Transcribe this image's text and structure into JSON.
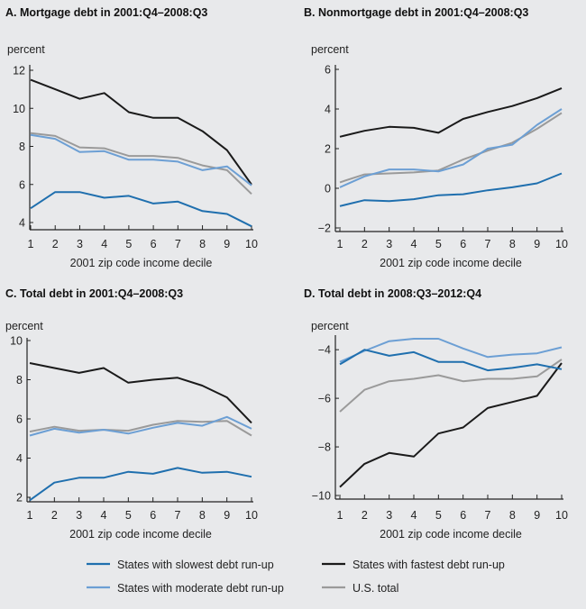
{
  "chart_data": [
    {
      "type": "line",
      "title": "A. Mortgage debt in 2001:Q4–2008:Q3",
      "ylabel": "percent",
      "xlabel": "2001 zip code income decile",
      "x": [
        1,
        2,
        3,
        4,
        5,
        6,
        7,
        8,
        9,
        10
      ],
      "ylim": [
        4,
        12
      ],
      "yticks": [
        4,
        6,
        8,
        10,
        12
      ],
      "series": [
        {
          "name": "States with fastest debt run-up",
          "color": "#1a1a1a",
          "values": [
            11.5,
            11.0,
            10.5,
            10.8,
            9.8,
            9.5,
            9.5,
            8.8,
            7.8,
            6.0
          ]
        },
        {
          "name": "U.S. total",
          "color": "#9a9a9a",
          "values": [
            8.7,
            8.55,
            7.95,
            7.9,
            7.5,
            7.5,
            7.4,
            7.0,
            6.75,
            5.5
          ]
        },
        {
          "name": "States with moderate debt run-up",
          "color": "#6c9fd4",
          "values": [
            8.6,
            8.4,
            7.7,
            7.75,
            7.3,
            7.3,
            7.2,
            6.75,
            6.95,
            5.95
          ]
        },
        {
          "name": "States with slowest debt run-up",
          "color": "#1f6fae",
          "values": [
            4.75,
            5.6,
            5.6,
            5.3,
            5.4,
            5.0,
            5.1,
            4.6,
            4.45,
            3.8
          ]
        }
      ]
    },
    {
      "type": "line",
      "title": "B. Nonmortgage debt in 2001:Q4–2008:Q3",
      "ylabel": "percent",
      "xlabel": "2001 zip code income decile",
      "x": [
        1,
        2,
        3,
        4,
        5,
        6,
        7,
        8,
        9,
        10
      ],
      "ylim": [
        -2,
        6
      ],
      "yticks": [
        -2,
        0,
        2,
        4,
        6
      ],
      "series": [
        {
          "name": "States with fastest debt run-up",
          "color": "#1a1a1a",
          "values": [
            2.6,
            2.9,
            3.1,
            3.05,
            2.8,
            3.5,
            3.85,
            4.15,
            4.55,
            5.05
          ]
        },
        {
          "name": "U.S. total",
          "color": "#9a9a9a",
          "values": [
            0.3,
            0.7,
            0.75,
            0.8,
            0.9,
            1.45,
            1.9,
            2.3,
            3.0,
            3.8
          ]
        },
        {
          "name": "States with moderate debt run-up",
          "color": "#6c9fd4",
          "values": [
            0.05,
            0.6,
            0.95,
            0.95,
            0.85,
            1.2,
            2.0,
            2.2,
            3.2,
            4.0
          ]
        },
        {
          "name": "States with slowest debt run-up",
          "color": "#1f6fae",
          "values": [
            -0.9,
            -0.6,
            -0.65,
            -0.55,
            -0.35,
            -0.3,
            -0.1,
            0.05,
            0.25,
            0.75
          ]
        }
      ]
    },
    {
      "type": "line",
      "title": "C. Total debt in 2001:Q4–2008:Q3",
      "ylabel": "percent",
      "xlabel": "2001 zip code income decile",
      "x": [
        1,
        2,
        3,
        4,
        5,
        6,
        7,
        8,
        9,
        10
      ],
      "ylim": [
        2,
        10
      ],
      "yticks": [
        2,
        4,
        6,
        8,
        10
      ],
      "series": [
        {
          "name": "States with fastest debt run-up",
          "color": "#1a1a1a",
          "values": [
            8.85,
            8.6,
            8.35,
            8.6,
            7.85,
            8.0,
            8.1,
            7.7,
            7.1,
            5.8
          ]
        },
        {
          "name": "U.S. total",
          "color": "#9a9a9a",
          "values": [
            5.35,
            5.6,
            5.4,
            5.45,
            5.4,
            5.7,
            5.9,
            5.85,
            5.9,
            5.15
          ]
        },
        {
          "name": "States with moderate debt run-up",
          "color": "#6c9fd4",
          "values": [
            5.15,
            5.5,
            5.3,
            5.45,
            5.25,
            5.55,
            5.8,
            5.65,
            6.1,
            5.5
          ]
        },
        {
          "name": "States with slowest debt run-up",
          "color": "#1f6fae",
          "values": [
            1.85,
            2.75,
            3.0,
            3.0,
            3.3,
            3.2,
            3.5,
            3.25,
            3.3,
            3.05
          ]
        }
      ]
    },
    {
      "type": "line",
      "title": "D. Total debt in 2008:Q3–2012:Q4",
      "ylabel": "percent",
      "xlabel": "2001 zip code income decile",
      "x": [
        1,
        2,
        3,
        4,
        5,
        6,
        7,
        8,
        9,
        10
      ],
      "ylim": [
        -10,
        -3.4
      ],
      "yticks": [
        -10,
        -8,
        -6,
        -4
      ],
      "series": [
        {
          "name": "States with fastest debt run-up",
          "color": "#1a1a1a",
          "values": [
            -9.65,
            -8.7,
            -8.25,
            -8.4,
            -7.45,
            -7.2,
            -6.4,
            -6.15,
            -5.9,
            -4.55
          ]
        },
        {
          "name": "U.S. total",
          "color": "#9a9a9a",
          "values": [
            -6.55,
            -5.65,
            -5.3,
            -5.2,
            -5.05,
            -5.3,
            -5.2,
            -5.2,
            -5.1,
            -4.4
          ]
        },
        {
          "name": "States with moderate debt run-up",
          "color": "#6c9fd4",
          "values": [
            -4.5,
            -4.05,
            -3.65,
            -3.55,
            -3.55,
            -3.95,
            -4.3,
            -4.2,
            -4.15,
            -3.9
          ]
        },
        {
          "name": "States with slowest debt run-up",
          "color": "#1f6fae",
          "values": [
            -4.6,
            -4.0,
            -4.25,
            -4.1,
            -4.5,
            -4.5,
            -4.85,
            -4.75,
            -4.6,
            -4.8
          ]
        }
      ]
    }
  ],
  "legend": {
    "placement": "bottom",
    "items": [
      {
        "label": "States with slowest debt run-up",
        "color": "#1f6fae"
      },
      {
        "label": "States with fastest debt run-up",
        "color": "#1a1a1a"
      },
      {
        "label": "States with moderate debt run-up",
        "color": "#6c9fd4"
      },
      {
        "label": "U.S. total",
        "color": "#9a9a9a"
      }
    ]
  }
}
